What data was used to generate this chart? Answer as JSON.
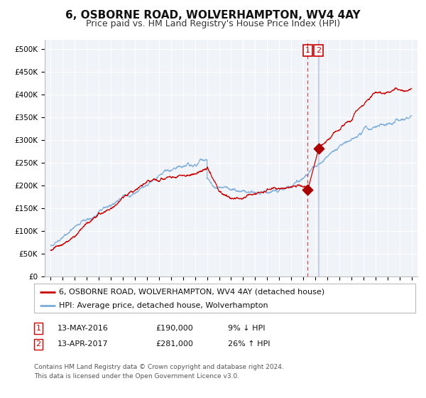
{
  "title": "6, OSBORNE ROAD, WOLVERHAMPTON, WV4 4AY",
  "subtitle": "Price paid vs. HM Land Registry's House Price Index (HPI)",
  "xlim": [
    1994.5,
    2025.5
  ],
  "ylim": [
    0,
    520000
  ],
  "yticks": [
    0,
    50000,
    100000,
    150000,
    200000,
    250000,
    300000,
    350000,
    400000,
    450000,
    500000
  ],
  "ytick_labels": [
    "£0",
    "£50K",
    "£100K",
    "£150K",
    "£200K",
    "£250K",
    "£300K",
    "£350K",
    "£400K",
    "£450K",
    "£500K"
  ],
  "xticks": [
    1995,
    1996,
    1997,
    1998,
    1999,
    2000,
    2001,
    2002,
    2003,
    2004,
    2005,
    2006,
    2007,
    2008,
    2009,
    2010,
    2011,
    2012,
    2013,
    2014,
    2015,
    2016,
    2017,
    2018,
    2019,
    2020,
    2021,
    2022,
    2023,
    2024,
    2025
  ],
  "bg_color": "#f0f4f8",
  "grid_color": "#ffffff",
  "red_line_color": "#cc0000",
  "blue_line_color": "#7aabdb",
  "vline1_color": "#cc0000",
  "vline2_color": "#aabbdd",
  "dot_color": "#aa0000",
  "dot1_x": 2016.37,
  "dot1_y": 190000,
  "dot2_x": 2017.28,
  "dot2_y": 281000,
  "legend_label1": "6, OSBORNE ROAD, WOLVERHAMPTON, WV4 4AY (detached house)",
  "legend_label2": "HPI: Average price, detached house, Wolverhampton",
  "table_row1": [
    "1",
    "13-MAY-2016",
    "£190,000",
    "9% ↓ HPI"
  ],
  "table_row2": [
    "2",
    "13-APR-2017",
    "£281,000",
    "26% ↑ HPI"
  ],
  "footnote": "Contains HM Land Registry data © Crown copyright and database right 2024.\nThis data is licensed under the Open Government Licence v3.0.",
  "title_fontsize": 11,
  "subtitle_fontsize": 9,
  "tick_fontsize": 7.5,
  "legend_fontsize": 8,
  "table_fontsize": 8,
  "footnote_fontsize": 6.5
}
